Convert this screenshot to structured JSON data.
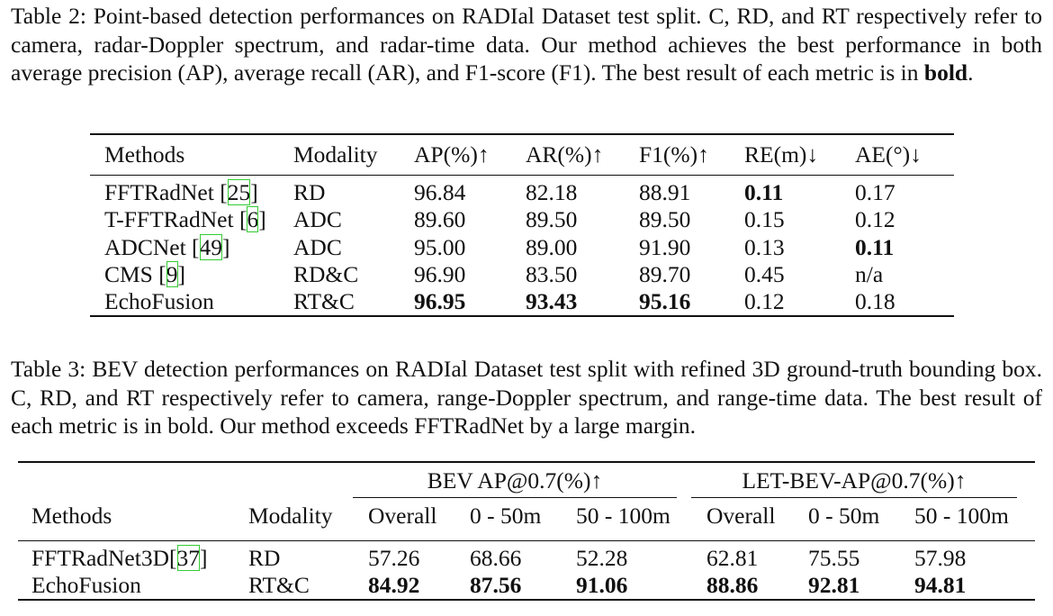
{
  "table2": {
    "caption": {
      "label": "Table 2:",
      "text": "Point-based detection performances on RADIal Dataset test split. C, RD, and RT respectively refer to camera, radar-Doppler spectrum, and radar-time data. Our method achieves the best performance in both average precision (AP), average recall (AR), and F1-score (F1). The best result of each metric is in",
      "bold": "bold",
      "end": "."
    },
    "header": [
      "Methods",
      "Modality",
      "AP(%)↑",
      "AR(%)↑",
      "F1(%)↑",
      "RE(m)↓",
      "AE(°)↓"
    ],
    "rows": [
      {
        "method": "FFTRadNet ",
        "cite": [
          "[",
          "25",
          "]"
        ],
        "cells": [
          "RD",
          "96.84",
          "82.18",
          "88.91",
          "0.11",
          "0.17"
        ],
        "bold": [
          4
        ]
      },
      {
        "method": "T-FFTRadNet ",
        "cite": [
          "[",
          "6",
          "]"
        ],
        "cells": [
          "ADC",
          "89.60",
          "89.50",
          "89.50",
          "0.15",
          "0.12"
        ],
        "bold": []
      },
      {
        "method": "ADCNet ",
        "cite": [
          "[",
          "49",
          "]"
        ],
        "cells": [
          "ADC",
          "95.00",
          "89.00",
          "91.90",
          "0.13",
          "0.11"
        ],
        "bold": [
          5
        ]
      },
      {
        "method": "CMS ",
        "cite": [
          "[",
          "9",
          "]"
        ],
        "cells": [
          "RD&C",
          "96.90",
          "83.50",
          "89.70",
          "0.45",
          "n/a"
        ],
        "bold": []
      },
      {
        "method": "EchoFusion",
        "cite": null,
        "cells": [
          "RT&C",
          "96.95",
          "93.43",
          "95.16",
          "0.12",
          "0.18"
        ],
        "bold": [
          1,
          2,
          3
        ]
      }
    ]
  },
  "table3": {
    "caption": {
      "label": "Table 3:",
      "text": "BEV detection performances on RADIal Dataset test split with refined 3D ground-truth bounding box. C, RD, and RT respectively refer to camera, range-Doppler spectrum, and range-time data. The best result of each metric is in bold. Our method exceeds FFTRadNet by a large margin."
    },
    "groups": [
      "BEV AP@0.7(%)↑",
      "LET-BEV-AP@0.7(%)↑"
    ],
    "header": [
      "Methods",
      "Modality",
      "Overall",
      "0 - 50m",
      "50 - 100m",
      "Overall",
      "0 - 50m",
      "50 - 100m"
    ],
    "rows": [
      {
        "method": "FFTRadNet3D",
        "cite": [
          "[",
          "37",
          "]"
        ],
        "cells": [
          "RD",
          "57.26",
          "68.66",
          "52.28",
          "62.81",
          "75.55",
          "57.98"
        ],
        "bold": []
      },
      {
        "method": "EchoFusion",
        "cite": null,
        "cells": [
          "RT&C",
          "84.92",
          "87.56",
          "91.06",
          "88.86",
          "92.81",
          "94.81"
        ],
        "bold": [
          1,
          2,
          3,
          4,
          5,
          6
        ]
      }
    ]
  }
}
